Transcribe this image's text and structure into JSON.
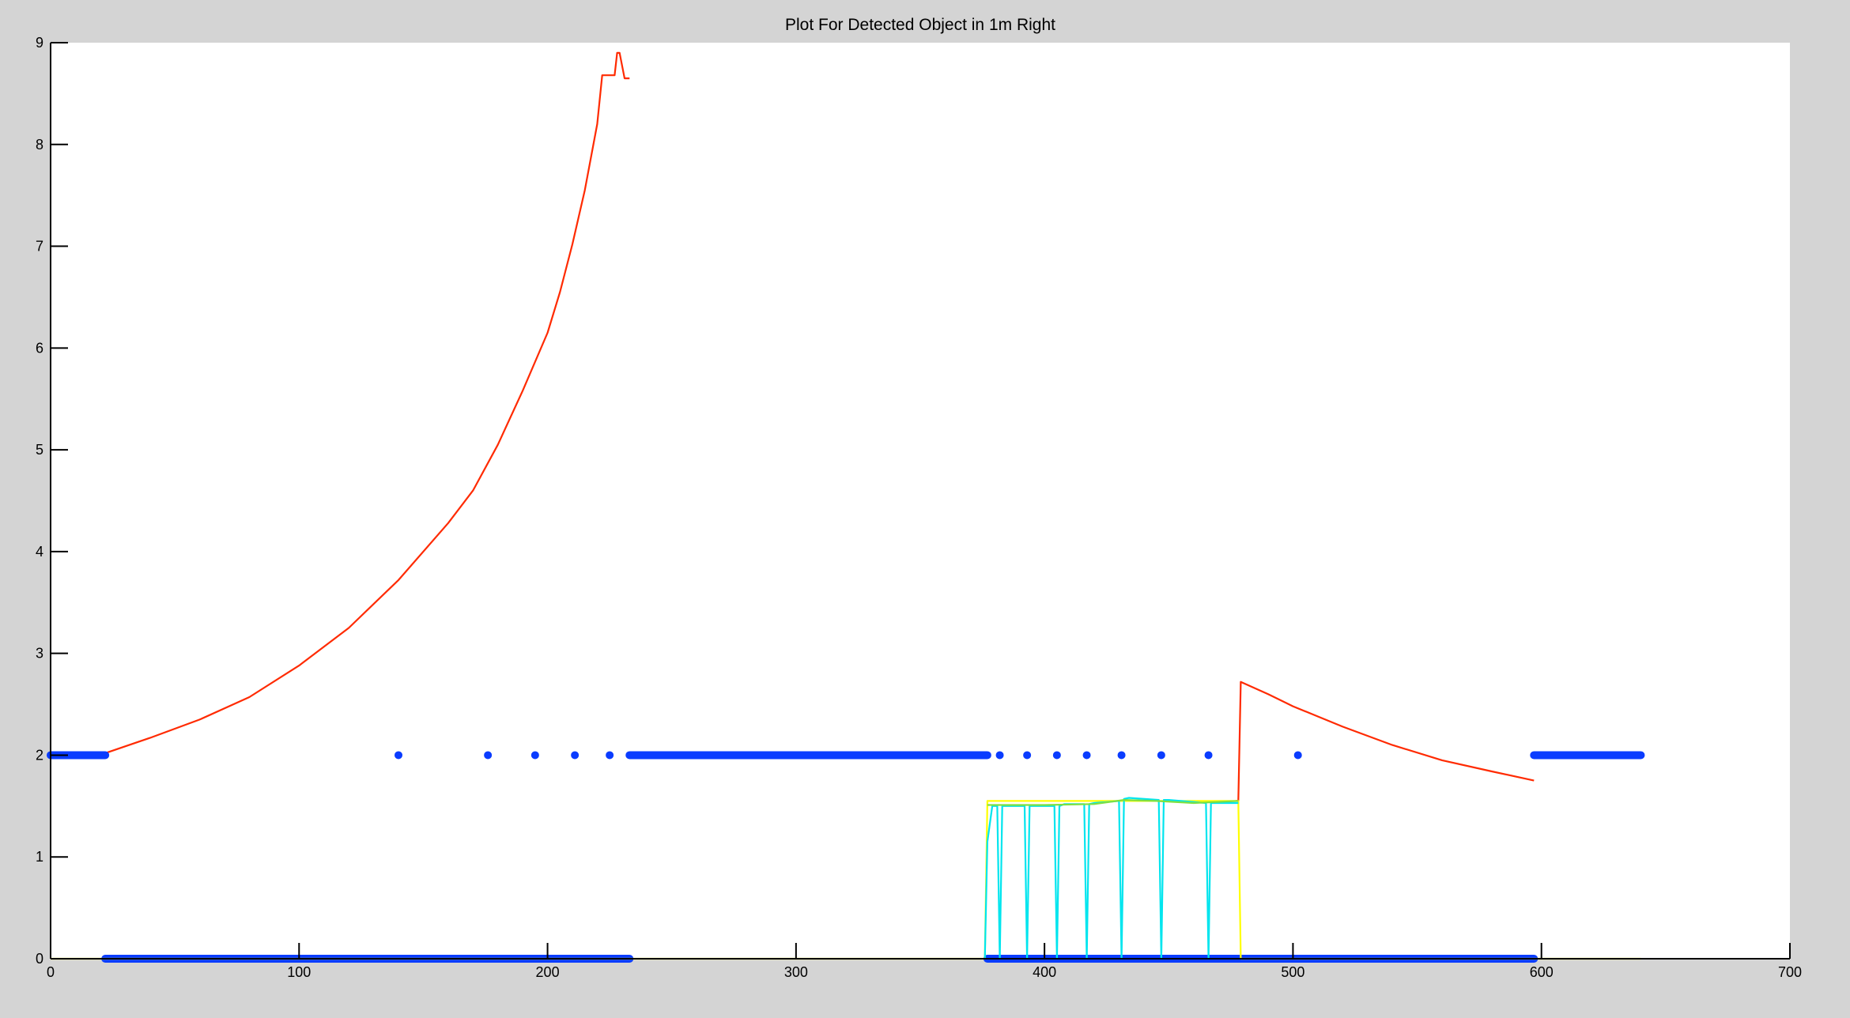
{
  "chart_data": {
    "type": "line",
    "title": "Plot For Detected Object in 1m Right",
    "xlabel": "",
    "ylabel": "",
    "xlim": [
      0,
      700
    ],
    "ylim": [
      0,
      9
    ],
    "x_ticks": [
      0,
      100,
      200,
      300,
      400,
      500,
      600,
      700
    ],
    "y_ticks": [
      0,
      1,
      2,
      3,
      4,
      5,
      6,
      7,
      8,
      9
    ],
    "grid": false,
    "legend": "none",
    "colors": {
      "red": "#ff2a00",
      "blue": "#0a3cff",
      "yellow": "#ffff00",
      "cyan": "#00e5ee",
      "green": "#7fe040",
      "plot_bg": "#ffffff",
      "figure_bg": "#d4d4d4",
      "axis": "#000000"
    },
    "series": [
      {
        "style": "line",
        "color": "red",
        "x": [
          22,
          40,
          60,
          80,
          100,
          120,
          140,
          160,
          170,
          180,
          190,
          200,
          205,
          210,
          215,
          220,
          222,
          224,
          227,
          228,
          229,
          231,
          233
        ],
        "y": [
          2.02,
          2.17,
          2.35,
          2.57,
          2.88,
          3.25,
          3.72,
          4.28,
          4.6,
          5.05,
          5.58,
          6.15,
          6.55,
          7.02,
          7.55,
          8.2,
          8.68,
          8.68,
          8.68,
          8.9,
          8.9,
          8.65,
          8.65
        ]
      },
      {
        "style": "line",
        "color": "red",
        "x": [
          477,
          478,
          479,
          490,
          500,
          510,
          520,
          540,
          560,
          580,
          597
        ],
        "y": [
          1.55,
          1.55,
          2.72,
          2.6,
          2.48,
          2.38,
          2.28,
          2.1,
          1.95,
          1.84,
          1.75
        ]
      },
      {
        "style": "dots",
        "color": "blue",
        "y": 2,
        "runs": [
          [
            0,
            22
          ],
          [
            233,
            377
          ],
          [
            597,
            640
          ]
        ],
        "points": [
          140,
          176,
          195,
          211,
          225,
          382,
          393,
          405,
          417,
          431,
          447,
          466,
          502
        ]
      },
      {
        "style": "dots",
        "color": "blue",
        "y": 0,
        "runs": [
          [
            22,
            233
          ],
          [
            377,
            597
          ]
        ],
        "points": []
      },
      {
        "style": "line",
        "color": "yellow",
        "x": [
          0,
          376,
          377,
          478,
          479,
          640
        ],
        "y": [
          0,
          0,
          1.55,
          1.55,
          0,
          0
        ]
      },
      {
        "style": "line",
        "color": "cyan",
        "x": [
          376,
          377,
          379,
          381,
          382,
          383,
          385,
          392,
          393,
          394,
          396,
          404,
          405,
          406,
          408,
          416,
          417,
          418,
          420,
          430,
          431,
          432,
          434,
          446,
          447,
          448,
          450,
          465,
          466,
          467,
          469,
          478
        ],
        "y": [
          0,
          1.15,
          1.5,
          1.5,
          0,
          1.5,
          1.5,
          1.5,
          0,
          1.5,
          1.5,
          1.5,
          0,
          1.5,
          1.52,
          1.52,
          0,
          1.52,
          1.53,
          1.55,
          0,
          1.57,
          1.58,
          1.56,
          0,
          1.56,
          1.56,
          1.53,
          0,
          1.53,
          1.53,
          1.53
        ]
      },
      {
        "style": "line",
        "color": "green",
        "x": [
          377,
          400,
          420,
          432,
          445,
          460,
          478
        ],
        "y": [
          1.51,
          1.51,
          1.52,
          1.56,
          1.55,
          1.53,
          1.55
        ]
      }
    ]
  }
}
